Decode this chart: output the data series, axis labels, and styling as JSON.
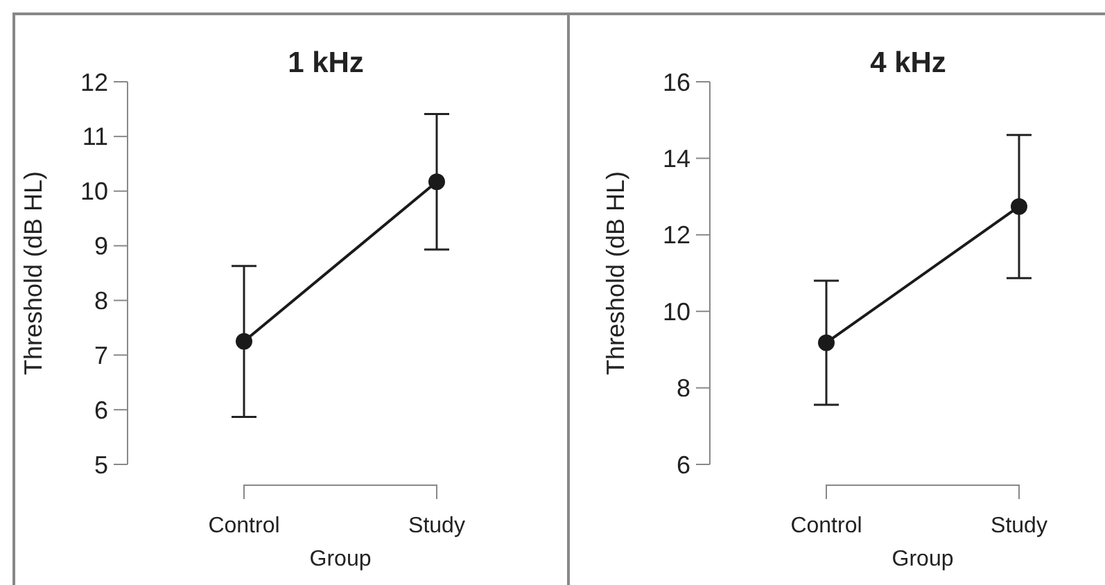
{
  "chart_data": [
    {
      "type": "line",
      "title": "1 kHz",
      "xlabel": "Group",
      "ylabel": "Threshold (dB HL)",
      "categories": [
        "Control",
        "Study"
      ],
      "ylim": [
        5,
        12
      ],
      "yticks": [
        5,
        6,
        7,
        8,
        9,
        10,
        11,
        12
      ],
      "marker": "circle",
      "grid": false,
      "series": [
        {
          "color": "#1a1a1a",
          "values": [
            7.25,
            10.17
          ],
          "errors": [
            1.38,
            1.24
          ]
        }
      ]
    },
    {
      "type": "line",
      "title": "4 kHz",
      "xlabel": "Group",
      "ylabel": "Threshold (dB HL)",
      "categories": [
        "Control",
        "Study"
      ],
      "ylim": [
        6,
        16
      ],
      "yticks": [
        6,
        8,
        10,
        12,
        14,
        16
      ],
      "marker": "circle",
      "grid": false,
      "series": [
        {
          "color": "#1a1a1a",
          "values": [
            9.18,
            12.74
          ],
          "errors": [
            1.62,
            1.87
          ]
        }
      ]
    }
  ]
}
